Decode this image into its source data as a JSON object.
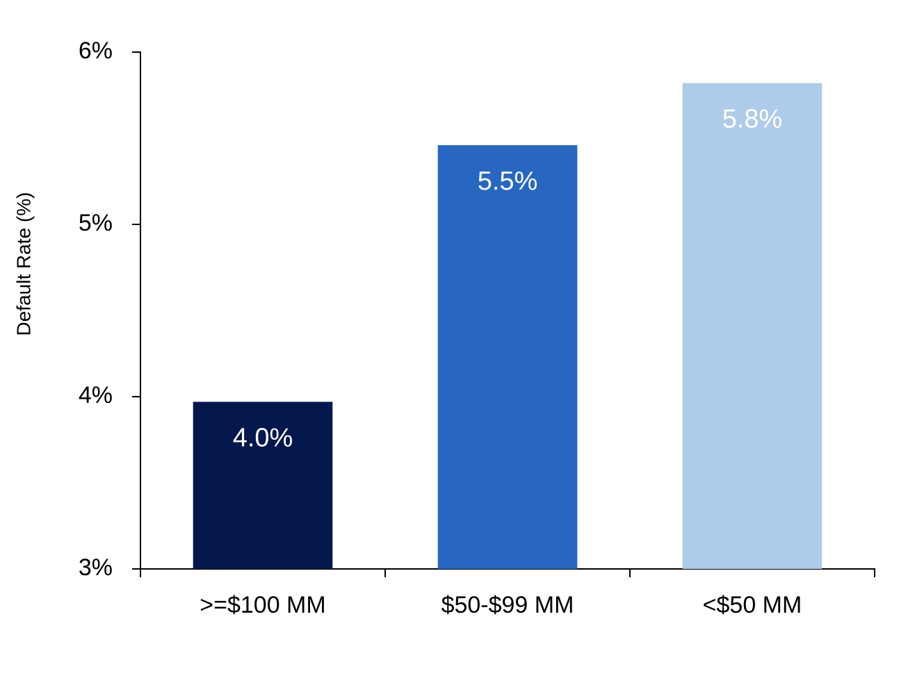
{
  "chart_data": {
    "type": "bar",
    "y_label": "Default Rate (%)",
    "categories": [
      ">=$100 MM",
      "$50-$99 MM",
      "<$50 MM"
    ],
    "values": [
      3.97,
      5.46,
      5.82
    ],
    "value_labels": [
      "4.0%",
      "5.5%",
      "5.8%"
    ],
    "colors": [
      "#03174c",
      "#2767c2",
      "#afcbea"
    ],
    "ylim": [
      3,
      6
    ],
    "yticks": [
      {
        "value": 3,
        "label": "3%"
      },
      {
        "value": 4,
        "label": "4%"
      },
      {
        "value": 5,
        "label": "5%"
      },
      {
        "value": 6,
        "label": "6%"
      }
    ],
    "grid": false
  }
}
